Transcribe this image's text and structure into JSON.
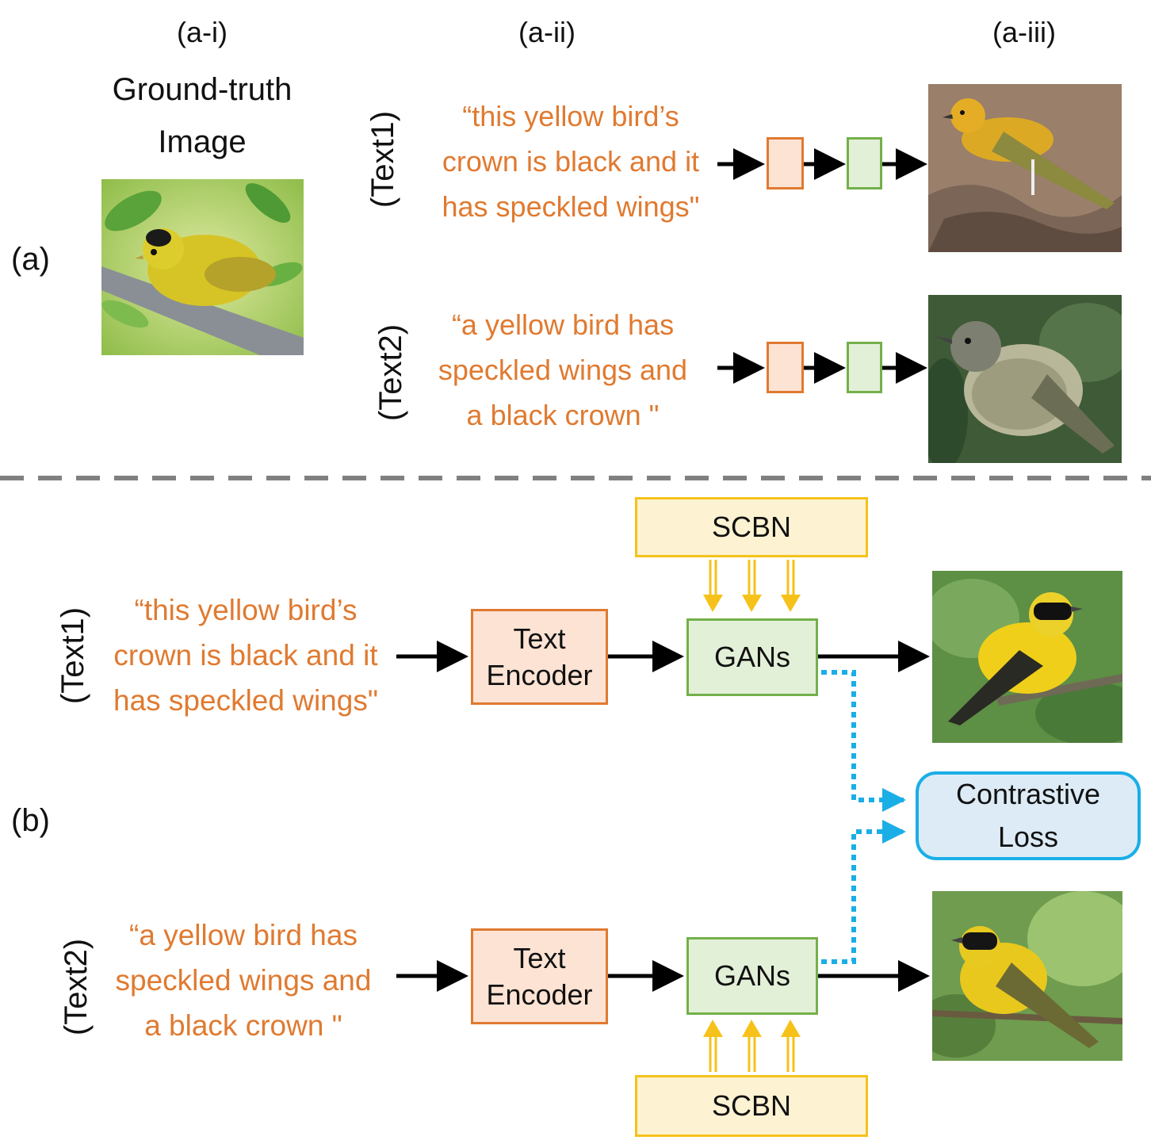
{
  "part_a": {
    "label": "(a)",
    "headers": [
      "(a-i)",
      "(a-ii)",
      "(a-iii)"
    ],
    "ground_truth_title": "Ground-truth\nImage",
    "text1_tag": "(Text1)",
    "text2_tag": "(Text2)",
    "text1": "“this yellow bird’s\ncrown is black and it\nhas speckled wings\"",
    "text2": "“a yellow bird has\nspeckled wings and\na black crown \""
  },
  "part_b": {
    "label": "(b)",
    "text1_tag": "(Text1)",
    "text2_tag": "(Text2)",
    "text1": "“this yellow bird’s\ncrown is black and it\nhas speckled wings\"",
    "text2": "“a yellow bird has\nspeckled wings and\na black crown \"",
    "text_encoder": "Text\nEncoder",
    "gans": "GANs",
    "scbn": "SCBN",
    "contrastive_loss": "Contrastive\nLoss"
  },
  "colors": {
    "orange_text": "#e07a30",
    "encoder_border": "#e07a30",
    "gan_border": "#74b04a",
    "scbn_border": "#f6c21a",
    "loss_border": "#1aaee6",
    "divider": "#808080"
  },
  "images": {
    "ground_truth": "yellow-bird-on-branch",
    "a_output_1": "yellow-bird-on-rock",
    "a_output_2": "speckled-gray-bird",
    "b_output_1": "yellow-bird-black-mask",
    "b_output_2": "yellow-bird-black-crown"
  }
}
